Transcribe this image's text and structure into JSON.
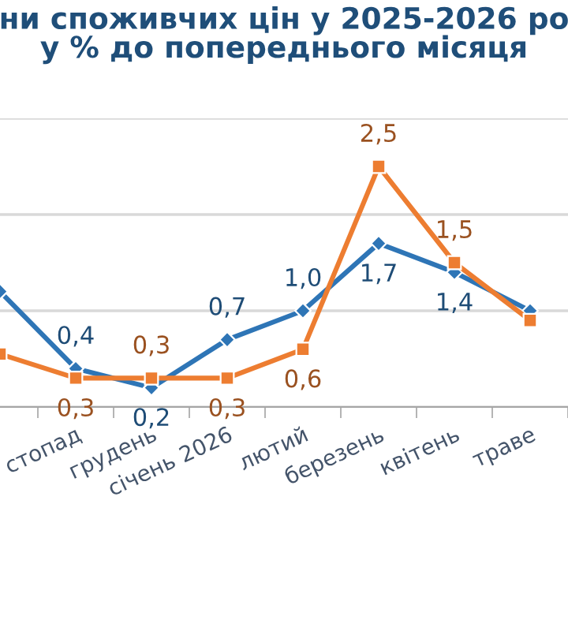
{
  "chart_data": {
    "type": "line",
    "title": "ни споживчих цін у 2025-2026 ро\nу % до попереднього місяця",
    "categories": [
      null,
      "стопад",
      "грудень",
      "січень 2026",
      "лютий",
      "березень",
      "квітень",
      "траве"
    ],
    "series": [
      {
        "color": "#2e75b6",
        "marker": "diamond",
        "values": [
          1.2,
          0.4,
          0.2,
          0.7,
          1.0,
          1.7,
          1.4,
          1.0
        ],
        "value_labels": [
          null,
          "0,4",
          "0,2",
          "0,7",
          "1,0",
          "1,7",
          "1,4",
          null
        ]
      },
      {
        "color": "#ed7d31",
        "marker": "square",
        "values": [
          0.55,
          0.3,
          0.3,
          0.3,
          0.6,
          2.5,
          1.5,
          0.9
        ],
        "value_labels": [
          null,
          "0,3",
          "0,3",
          "0,3",
          "0,6",
          "2,5",
          "1,5",
          null
        ]
      }
    ],
    "ylim": [
      0,
      3
    ],
    "yticks": [
      {
        "value": 0,
        "label": null
      },
      {
        "value": 1,
        "label": null
      },
      {
        "value": 2,
        "label": null
      },
      {
        "value": 3,
        "label": null
      }
    ],
    "tick_labels": "x",
    "grid": "y",
    "legend": false,
    "line_style": "solid"
  }
}
